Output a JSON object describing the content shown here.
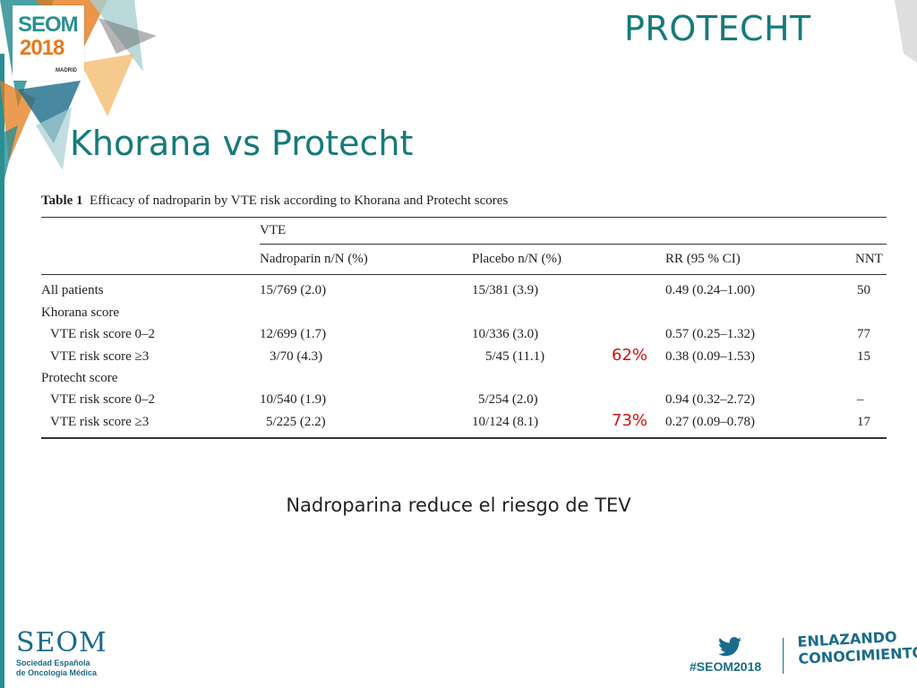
{
  "header": {
    "title": "PROTECHT"
  },
  "logo": {
    "top": "SEOM",
    "year": "2018",
    "city": "MADRID"
  },
  "slide": {
    "title": "Khorana vs Protecht"
  },
  "table": {
    "caption_bold": "Table 1",
    "caption": "Efficacy of nadroparin by VTE risk according to Khorana and Protecht scores",
    "group_header": "VTE",
    "columns": [
      "Nadroparin n/N (%)",
      "Placebo n/N (%)",
      "RR (95 % CI)",
      "NNT"
    ],
    "rows": [
      {
        "label": "All patients",
        "nadroparin": "15/769 (2.0)",
        "placebo": "15/381 (3.9)",
        "rr": "0.49 (0.24–1.00)",
        "nnt": "50"
      },
      {
        "label": "Khorana score",
        "nadroparin": "",
        "placebo": "",
        "rr": "",
        "nnt": ""
      },
      {
        "label": "VTE risk score 0–2",
        "nadroparin": "12/699 (1.7)",
        "placebo": "10/336 (3.0)",
        "rr": "0.57 (0.25–1.32)",
        "nnt": "77"
      },
      {
        "label": "VTE risk score ≥3",
        "nadroparin": "3/70 (4.3)",
        "placebo": "5/45 (11.1)",
        "rr": "0.38 (0.09–1.53)",
        "nnt": "15"
      },
      {
        "label": "Protecht score",
        "nadroparin": "",
        "placebo": "",
        "rr": "",
        "nnt": ""
      },
      {
        "label": "VTE risk score 0–2",
        "nadroparin": "10/540 (1.9)",
        "placebo": "5/254 (2.0)",
        "rr": "0.94 (0.32–2.72)",
        "nnt": "–"
      },
      {
        "label": "VTE risk score ≥3",
        "nadroparin": "5/225 (2.2)",
        "placebo": "10/124 (8.1)",
        "rr": "0.27 (0.09–0.78)",
        "nnt": "17"
      }
    ],
    "annotations": [
      "62%",
      "73%"
    ]
  },
  "caption_text": "Nadroparina reduce el riesgo de TEV",
  "footer": {
    "org": "SEOM",
    "org_line1": "Sociedad Española",
    "org_line2": "de Oncología Médica",
    "hashtag": "#SEOM2018",
    "slogan_line1": "ENLAZANDO",
    "slogan_line2": "CONOCIMIENTO",
    "twitter_icon": "twitter-bird-icon"
  },
  "colors": {
    "accent": "#167a7a",
    "highlight": "#d01010",
    "brand_blue": "#1a6b8a",
    "orange": "#e57a1a"
  }
}
